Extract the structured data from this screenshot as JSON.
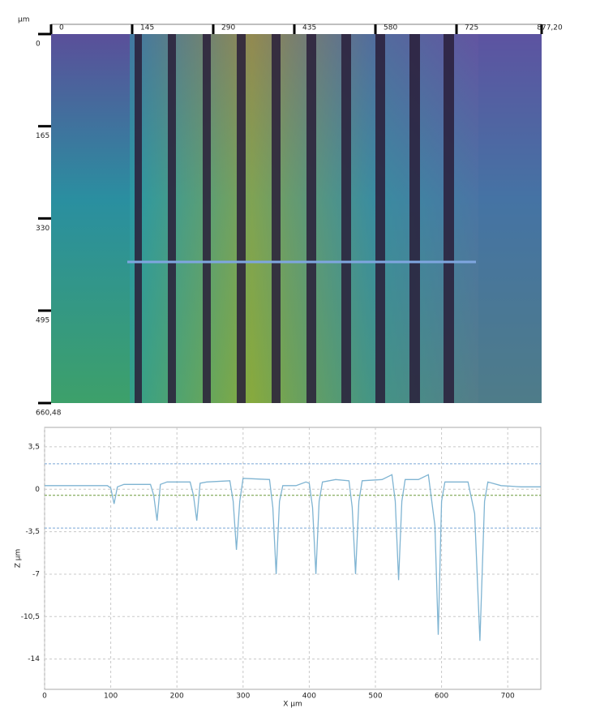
{
  "chart_data": [
    {
      "type": "image",
      "unit": "µm",
      "xlim": [
        0,
        877.2
      ],
      "xticks": [
        0,
        145,
        290,
        435,
        580,
        725,
        {
          "value": 877.2,
          "label": "877,20"
        }
      ],
      "ylim": [
        0,
        660.48
      ],
      "yticks": [
        0,
        165,
        330,
        495,
        {
          "value": 660.48,
          "label": "660,48"
        }
      ]
    },
    {
      "type": "line",
      "xlabel": "X µm",
      "ylabel": "Z µm",
      "xlim": [
        0,
        750
      ],
      "xticks": [
        0,
        100,
        200,
        300,
        400,
        500,
        600,
        700
      ],
      "ylim": [
        -16.5,
        5.1
      ],
      "yticks": [
        {
          "value": 3.5,
          "label": "3,5"
        },
        0,
        {
          "value": -3.5,
          "label": "-3,5"
        },
        -7,
        {
          "value": -10.5,
          "label": "-10,5"
        },
        -14
      ],
      "grid": true,
      "reference_lines": [
        {
          "value": 2.1,
          "color": "#7aa6d6"
        },
        {
          "value": -0.5,
          "color": "#6a9a3a"
        },
        {
          "value": -3.2,
          "color": "#7aa6d6"
        }
      ],
      "series": [
        {
          "color": "#7fb4d2",
          "x": [
            0,
            50,
            95,
            100,
            105,
            110,
            120,
            160,
            165,
            170,
            175,
            185,
            220,
            225,
            230,
            235,
            245,
            280,
            285,
            290,
            295,
            300,
            340,
            345,
            350,
            355,
            360,
            380,
            395,
            400,
            405,
            410,
            415,
            420,
            440,
            460,
            465,
            470,
            475,
            480,
            510,
            525,
            530,
            535,
            540,
            545,
            565,
            580,
            590,
            595,
            600,
            605,
            640,
            650,
            658,
            665,
            670,
            690,
            720,
            750
          ],
          "values": [
            0.3,
            0.3,
            0.3,
            0.1,
            -1.2,
            0.2,
            0.4,
            0.4,
            -0.5,
            -2.6,
            0.4,
            0.6,
            0.6,
            -0.5,
            -2.6,
            0.5,
            0.6,
            0.7,
            -1.0,
            -5.0,
            -1.0,
            0.9,
            0.8,
            -1.5,
            -7.0,
            -1.0,
            0.3,
            0.3,
            0.6,
            0.5,
            -1.5,
            -7.0,
            -1.0,
            0.6,
            0.8,
            0.7,
            -1.5,
            -7.0,
            -1.0,
            0.7,
            0.8,
            1.2,
            -1.0,
            -7.5,
            -1.0,
            0.8,
            0.8,
            1.2,
            -3.0,
            -12.0,
            -1.0,
            0.6,
            0.6,
            -2.0,
            -12.5,
            -1.0,
            0.6,
            0.3,
            0.2,
            0.2
          ]
        }
      ]
    }
  ]
}
